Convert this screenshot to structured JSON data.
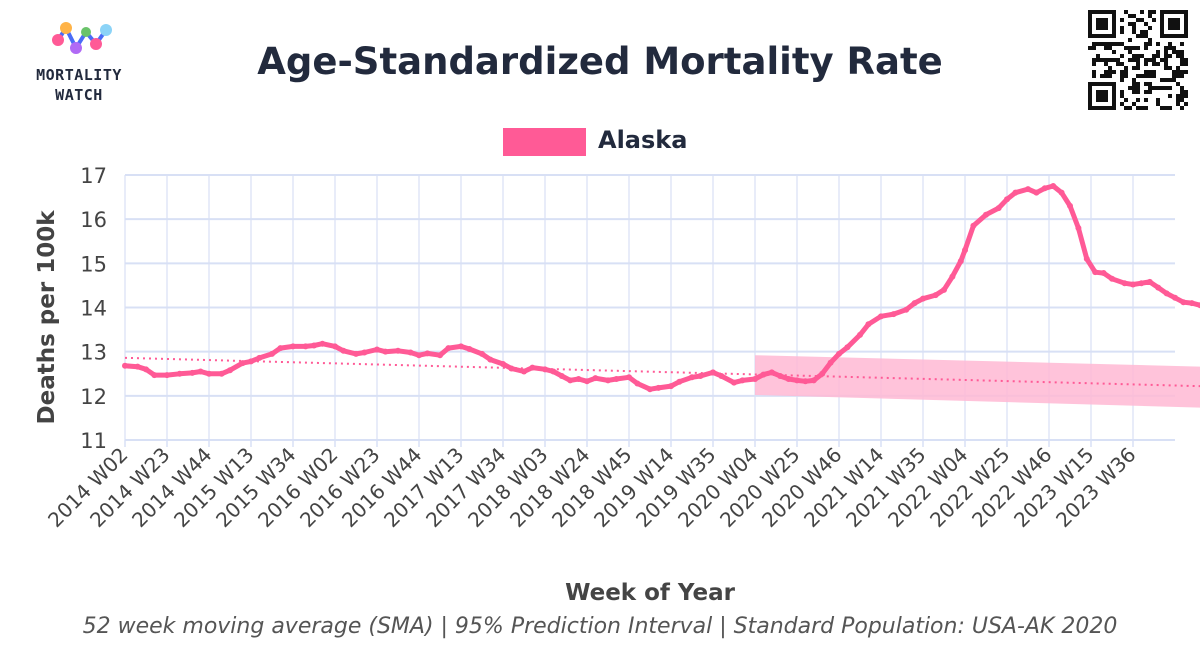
{
  "header": {
    "logo_line1": "MORTALITY",
    "logo_line2": "WATCH",
    "title": "Age-Standardized Mortality Rate"
  },
  "legend": {
    "label": "Alaska"
  },
  "footnote": "52 week moving average (SMA) | 95% Prediction Interval | Standard Population: USA-AK 2020",
  "colors": {
    "series": "#ff5a96",
    "band": "#ffb8d4",
    "grid": "#d8e0f5",
    "text": "#222a3d",
    "tick": "#444444"
  },
  "chart_data": {
    "type": "line",
    "title": "Age-Standardized Mortality Rate",
    "xlabel": "Week of Year",
    "ylabel": "Deaths per 100k",
    "ylim": [
      11,
      17
    ],
    "yticks": [
      11,
      12,
      13,
      14,
      15,
      16,
      17
    ],
    "grid": true,
    "legend_position": "top-center",
    "x_tick_labels": [
      "2014 W02",
      "2014 W23",
      "2014 W44",
      "2015 W13",
      "2015 W34",
      "2016 W02",
      "2016 W23",
      "2016 W44",
      "2017 W13",
      "2017 W34",
      "2018 W03",
      "2018 W24",
      "2018 W45",
      "2019 W14",
      "2019 W35",
      "2020 W04",
      "2020 W25",
      "2020 W46",
      "2021 W14",
      "2021 W35",
      "2022 W04",
      "2022 W25",
      "2022 W46",
      "2023 W15",
      "2023 W36"
    ],
    "series": [
      {
        "name": "Alaska",
        "kind": "observed",
        "points": [
          [
            0,
            12.68
          ],
          [
            0.3,
            12.66
          ],
          [
            0.5,
            12.6
          ],
          [
            0.7,
            12.47
          ],
          [
            1,
            12.47
          ],
          [
            1.3,
            12.5
          ],
          [
            1.6,
            12.52
          ],
          [
            1.8,
            12.55
          ],
          [
            2,
            12.5
          ],
          [
            2.3,
            12.5
          ],
          [
            2.5,
            12.58
          ],
          [
            2.8,
            12.74
          ],
          [
            3,
            12.78
          ],
          [
            3.2,
            12.86
          ],
          [
            3.5,
            12.95
          ],
          [
            3.7,
            13.08
          ],
          [
            4,
            13.12
          ],
          [
            4.3,
            13.12
          ],
          [
            4.5,
            13.14
          ],
          [
            4.7,
            13.18
          ],
          [
            5,
            13.12
          ],
          [
            5.2,
            13.02
          ],
          [
            5.5,
            12.95
          ],
          [
            5.7,
            12.98
          ],
          [
            6,
            13.05
          ],
          [
            6.2,
            13.0
          ],
          [
            6.5,
            13.02
          ],
          [
            6.8,
            12.98
          ],
          [
            7,
            12.92
          ],
          [
            7.2,
            12.96
          ],
          [
            7.5,
            12.92
          ],
          [
            7.7,
            13.08
          ],
          [
            8,
            13.12
          ],
          [
            8.2,
            13.06
          ],
          [
            8.5,
            12.95
          ],
          [
            8.7,
            12.82
          ],
          [
            9,
            12.72
          ],
          [
            9.2,
            12.62
          ],
          [
            9.5,
            12.55
          ],
          [
            9.7,
            12.64
          ],
          [
            10,
            12.6
          ],
          [
            10.2,
            12.55
          ],
          [
            10.4,
            12.45
          ],
          [
            10.6,
            12.35
          ],
          [
            10.8,
            12.38
          ],
          [
            11,
            12.33
          ],
          [
            11.2,
            12.4
          ],
          [
            11.5,
            12.35
          ],
          [
            11.7,
            12.38
          ],
          [
            12,
            12.42
          ],
          [
            12.2,
            12.28
          ],
          [
            12.5,
            12.15
          ],
          [
            12.7,
            12.18
          ],
          [
            13,
            12.22
          ],
          [
            13.2,
            12.32
          ],
          [
            13.5,
            12.42
          ],
          [
            13.7,
            12.45
          ],
          [
            14,
            12.53
          ],
          [
            14.2,
            12.45
          ],
          [
            14.5,
            12.3
          ],
          [
            14.7,
            12.35
          ],
          [
            15,
            12.38
          ],
          [
            15.2,
            12.48
          ],
          [
            15.4,
            12.53
          ],
          [
            15.6,
            12.45
          ],
          [
            15.8,
            12.38
          ],
          [
            16,
            12.35
          ],
          [
            16.2,
            12.33
          ],
          [
            16.4,
            12.35
          ],
          [
            16.6,
            12.5
          ],
          [
            16.8,
            12.75
          ],
          [
            17,
            12.95
          ],
          [
            17.2,
            13.1
          ],
          [
            17.5,
            13.38
          ],
          [
            17.7,
            13.62
          ],
          [
            18,
            13.8
          ],
          [
            18.3,
            13.85
          ],
          [
            18.6,
            13.95
          ],
          [
            18.8,
            14.1
          ],
          [
            19,
            14.2
          ],
          [
            19.3,
            14.28
          ],
          [
            19.5,
            14.4
          ],
          [
            19.7,
            14.7
          ],
          [
            19.9,
            15.05
          ],
          [
            20,
            15.3
          ],
          [
            20.2,
            15.85
          ],
          [
            20.5,
            16.1
          ],
          [
            20.8,
            16.25
          ],
          [
            21,
            16.45
          ],
          [
            21.2,
            16.6
          ],
          [
            21.5,
            16.68
          ],
          [
            21.7,
            16.6
          ],
          [
            21.9,
            16.7
          ],
          [
            22.1,
            16.75
          ],
          [
            22.3,
            16.6
          ],
          [
            22.5,
            16.3
          ],
          [
            22.7,
            15.8
          ],
          [
            22.9,
            15.1
          ],
          [
            23.1,
            14.8
          ],
          [
            23.3,
            14.78
          ],
          [
            23.5,
            14.65
          ],
          [
            23.8,
            14.55
          ],
          [
            24,
            14.52
          ],
          [
            24.2,
            14.55
          ],
          [
            24.4,
            14.58
          ],
          [
            24.6,
            14.45
          ],
          [
            24.8,
            14.32
          ],
          [
            25,
            14.22
          ],
          [
            25.2,
            14.12
          ],
          [
            25.4,
            14.1
          ],
          [
            25.6,
            14.05
          ],
          [
            25.8,
            14.05
          ],
          [
            26,
            14.02
          ],
          [
            26.1,
            13.75
          ],
          [
            26.2,
            13.4
          ],
          [
            26.3,
            13.12
          ],
          [
            26.35,
            12.85
          ]
        ]
      },
      {
        "name": "Baseline",
        "kind": "trend",
        "points": [
          [
            0,
            12.86
          ],
          [
            26.35,
            12.2
          ]
        ]
      },
      {
        "name": "95% Prediction Interval",
        "kind": "interval",
        "x": [
          15,
          26.1
        ],
        "upper": [
          12.92,
          12.65
        ],
        "lower": [
          12.02,
          11.72
        ]
      }
    ]
  }
}
